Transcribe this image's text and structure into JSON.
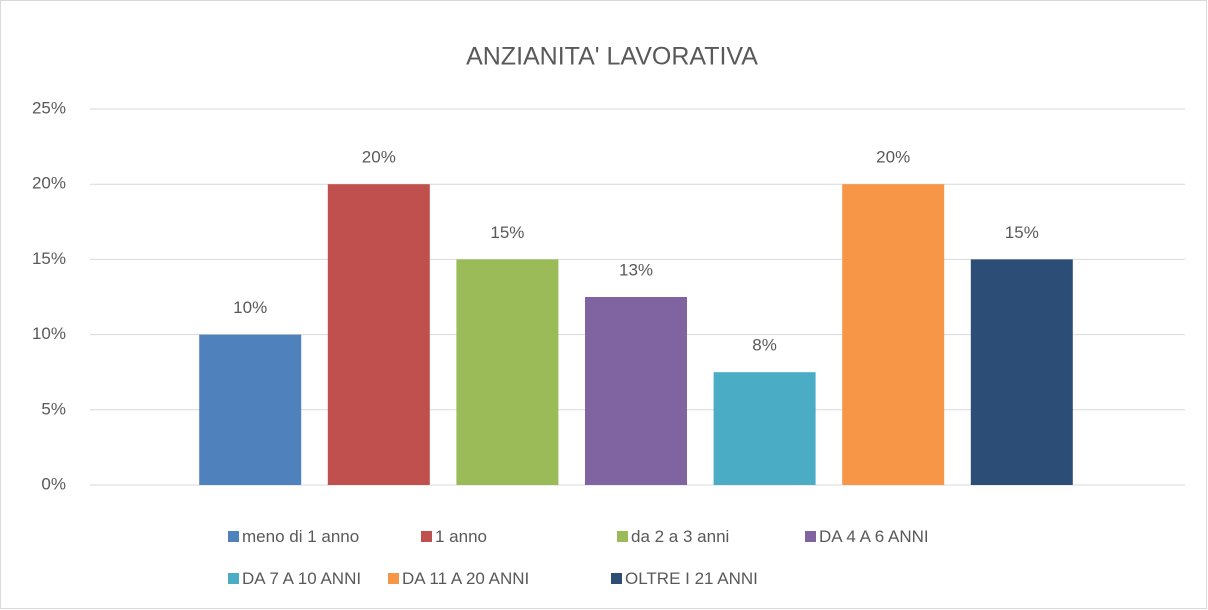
{
  "chart_data": {
    "type": "bar",
    "title": "ANZIANITA' LAVORATIVA",
    "categories": [
      null
    ],
    "series": [
      {
        "name": "meno di 1 anno",
        "color": "#4f81bd",
        "values": [
          10
        ],
        "value_labels": [
          "10%"
        ]
      },
      {
        "name": "1 anno",
        "color": "#c0504d",
        "values": [
          20
        ],
        "value_labels": [
          "20%"
        ]
      },
      {
        "name": "da 2 a 3 anni",
        "color": "#9bbb59",
        "values": [
          15
        ],
        "value_labels": [
          "15%"
        ]
      },
      {
        "name": "DA 4 A 6 ANNI",
        "color": "#8064a2",
        "values": [
          12.5
        ],
        "value_labels": [
          "13%"
        ]
      },
      {
        "name": "DA 7 A 10 ANNI",
        "color": "#4bacc6",
        "values": [
          7.5
        ],
        "value_labels": [
          "8%"
        ]
      },
      {
        "name": "DA 11 A 20 ANNI",
        "color": "#f79646",
        "values": [
          20
        ],
        "value_labels": [
          "20%"
        ]
      },
      {
        "name": "OLTRE I 21 ANNI",
        "color": "#2c4d75",
        "values": [
          15
        ],
        "value_labels": [
          "15%"
        ]
      }
    ],
    "ylim": [
      0,
      25
    ],
    "yticks": [
      {
        "value": 0,
        "label": "0%"
      },
      {
        "value": 5,
        "label": "5%"
      },
      {
        "value": 10,
        "label": "10%"
      },
      {
        "value": 15,
        "label": "15%"
      },
      {
        "value": 20,
        "label": "20%"
      },
      {
        "value": 25,
        "label": "25%"
      }
    ],
    "grid": true,
    "legend": "bottom"
  }
}
